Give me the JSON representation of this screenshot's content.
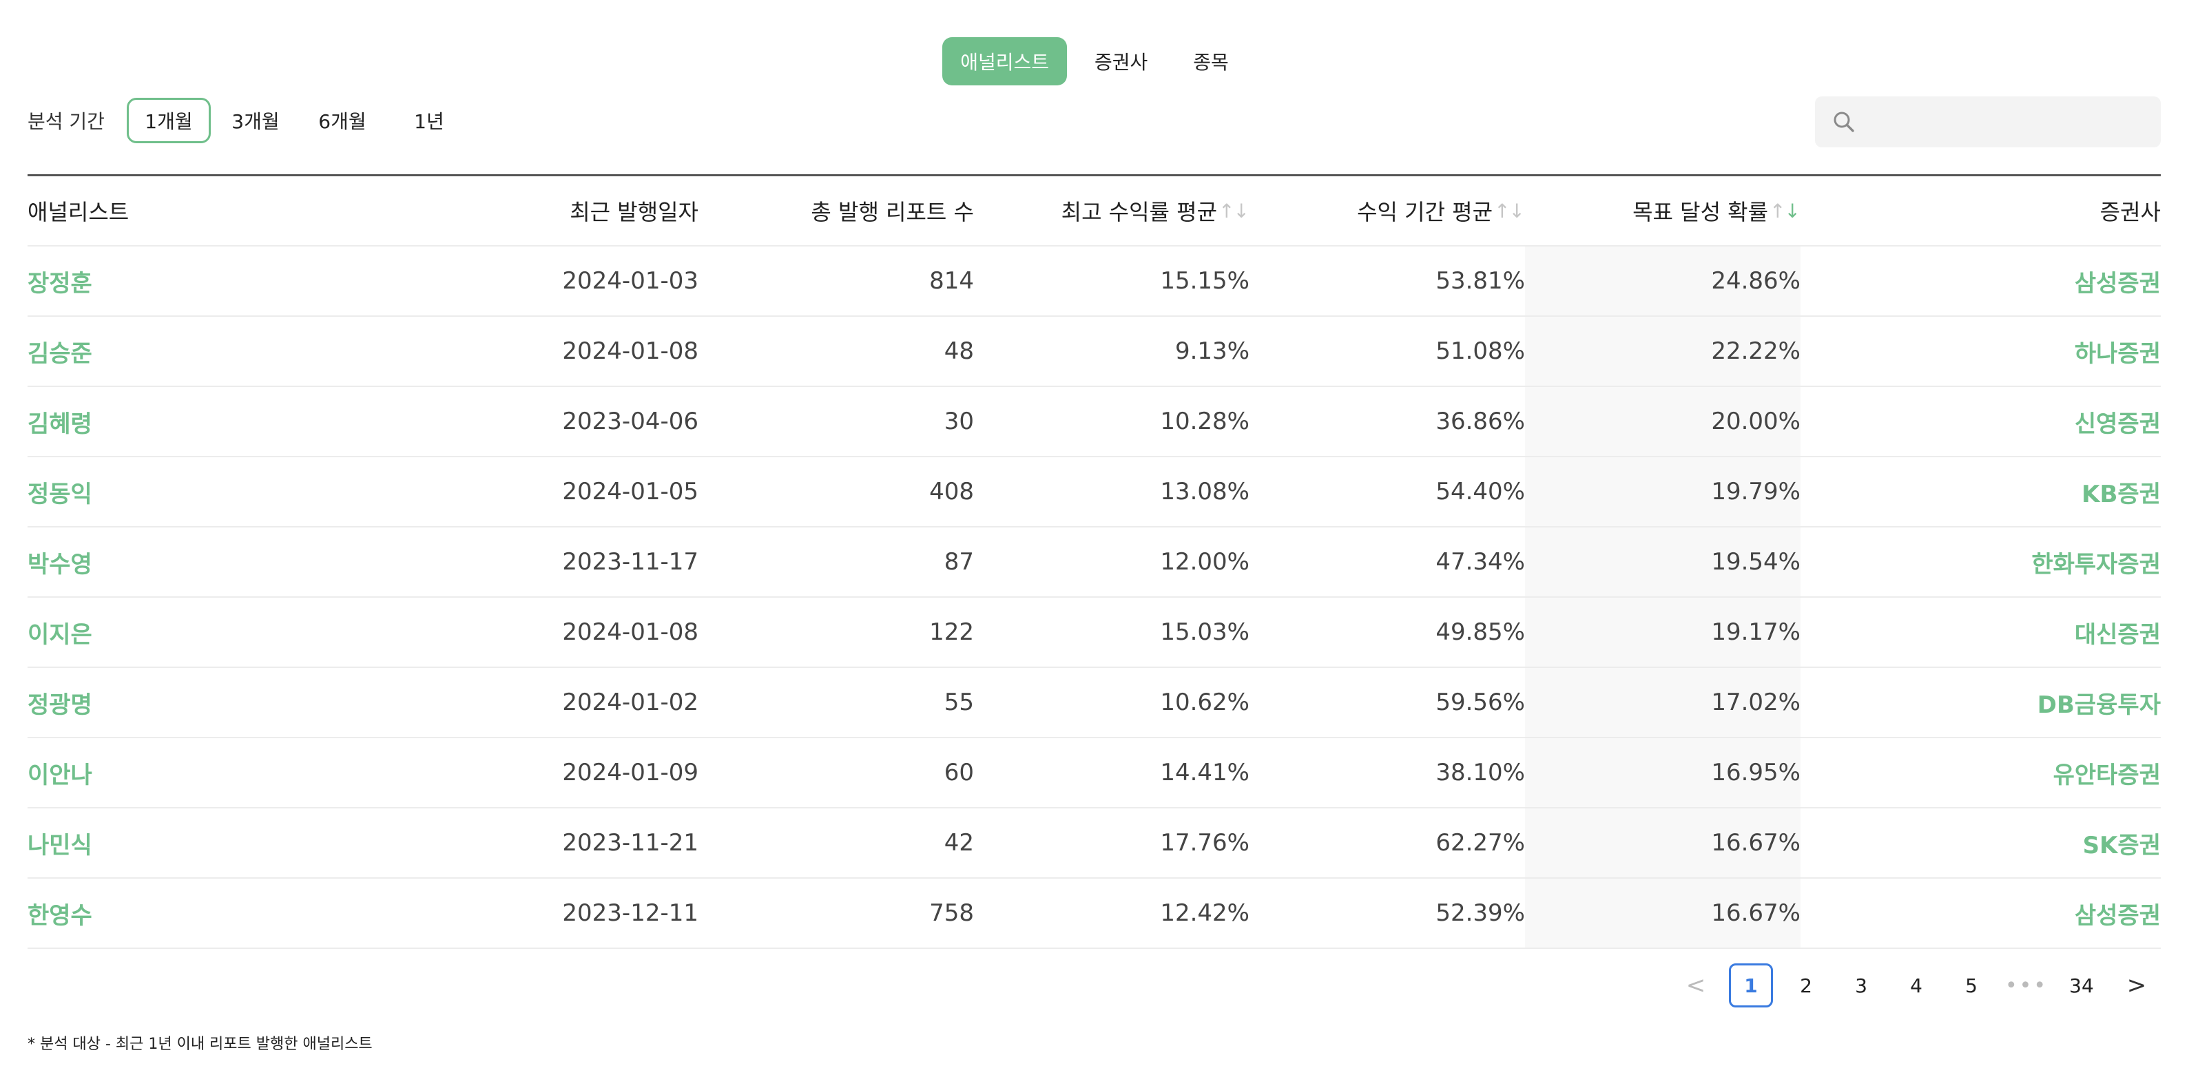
{
  "top_tabs": [
    "애널리스트",
    "증권사",
    "종목"
  ],
  "period": {
    "label": "분석 기간",
    "options": [
      "1개월",
      "3개월",
      "6개월",
      "1년"
    ]
  },
  "search": {
    "placeholder": ""
  },
  "table": {
    "headers": [
      "애널리스트",
      "최근 발행일자",
      "총 발행 리포트 수",
      "최고 수익률 평균",
      "수익 기간 평균",
      "목표 달성 확률",
      "증권사"
    ],
    "rows": [
      {
        "name": "장정훈",
        "date": "2024-01-03",
        "reports": "814",
        "max_return": "15.15%",
        "period_avg": "53.81%",
        "target_prob": "24.86%",
        "firm": "삼성증권"
      },
      {
        "name": "김승준",
        "date": "2024-01-08",
        "reports": "48",
        "max_return": "9.13%",
        "period_avg": "51.08%",
        "target_prob": "22.22%",
        "firm": "하나증권"
      },
      {
        "name": "김혜령",
        "date": "2023-04-06",
        "reports": "30",
        "max_return": "10.28%",
        "period_avg": "36.86%",
        "target_prob": "20.00%",
        "firm": "신영증권"
      },
      {
        "name": "정동익",
        "date": "2024-01-05",
        "reports": "408",
        "max_return": "13.08%",
        "period_avg": "54.40%",
        "target_prob": "19.79%",
        "firm": "KB증권"
      },
      {
        "name": "박수영",
        "date": "2023-11-17",
        "reports": "87",
        "max_return": "12.00%",
        "period_avg": "47.34%",
        "target_prob": "19.54%",
        "firm": "한화투자증권"
      },
      {
        "name": "이지은",
        "date": "2024-01-08",
        "reports": "122",
        "max_return": "15.03%",
        "period_avg": "49.85%",
        "target_prob": "19.17%",
        "firm": "대신증권"
      },
      {
        "name": "정광명",
        "date": "2024-01-02",
        "reports": "55",
        "max_return": "10.62%",
        "period_avg": "59.56%",
        "target_prob": "17.02%",
        "firm": "DB금융투자"
      },
      {
        "name": "이안나",
        "date": "2024-01-09",
        "reports": "60",
        "max_return": "14.41%",
        "period_avg": "38.10%",
        "target_prob": "16.95%",
        "firm": "유안타증권"
      },
      {
        "name": "나민식",
        "date": "2023-11-21",
        "reports": "42",
        "max_return": "17.76%",
        "period_avg": "62.27%",
        "target_prob": "16.67%",
        "firm": "SK증권"
      },
      {
        "name": "한영수",
        "date": "2023-12-11",
        "reports": "758",
        "max_return": "12.42%",
        "period_avg": "52.39%",
        "target_prob": "16.67%",
        "firm": "삼성증권"
      }
    ]
  },
  "pagination": {
    "prev": "<",
    "pages": [
      "1",
      "2",
      "3",
      "4",
      "5"
    ],
    "ellipsis": "•••",
    "last": "34",
    "next": ">"
  },
  "footnote": "* 분석 대상 - 최근 1년 이내 리포트 발행한 애널리스트",
  "colors": {
    "accent": "#70bf8b",
    "pager_active": "#3a7be0"
  }
}
